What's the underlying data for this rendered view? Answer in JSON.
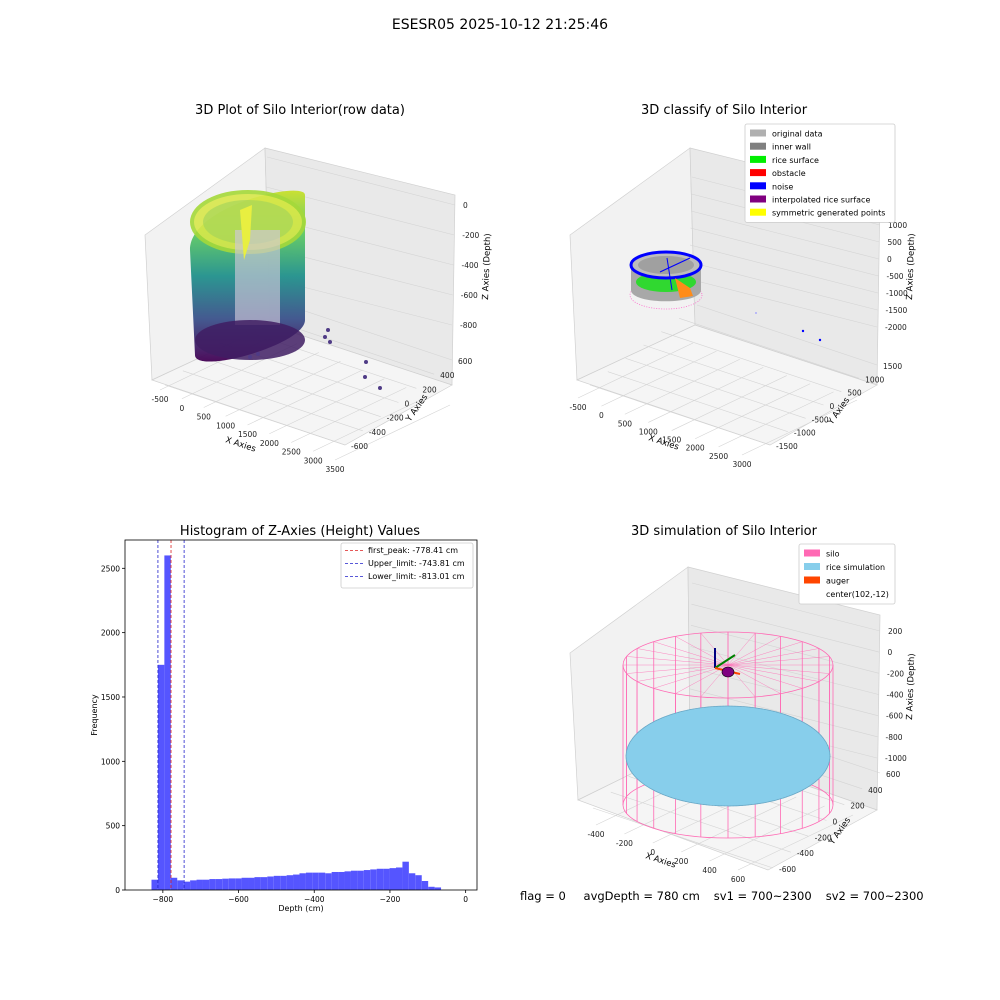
{
  "figure": {
    "title": "ESESR05 2025-10-12 21:25:46"
  },
  "footer": {
    "flag": "flag = 0",
    "avg_depth": "avgDepth = 780 cm",
    "sv1": "sv1 = 700~2300",
    "sv2": "sv2 = 700~2300"
  },
  "chart_data": [
    {
      "type": "scatter",
      "title": "3D Plot of Silo Interior(row data)",
      "xlabel": "X Axies",
      "ylabel": "Y Axies",
      "zlabel": "Z Axies (Depth)",
      "x_ticks": [
        "-500",
        "0",
        "500",
        "1000",
        "1500",
        "2000",
        "2500",
        "3000",
        "3500"
      ],
      "y_ticks": [
        "-600",
        "-400",
        "-200",
        "0",
        "200",
        "400",
        "600"
      ],
      "z_ticks": [
        "0",
        "-200",
        "-400",
        "-600",
        "-800"
      ],
      "xlim": [
        -700,
        3500
      ],
      "ylim": [
        -650,
        650
      ],
      "zlim": [
        -900,
        0
      ],
      "colormap": "viridis",
      "points": [
        {
          "x": 200,
          "y": 0,
          "z": -20,
          "desc": "silo wall point cloud, cylindrical, depth 0 to -900"
        },
        {
          "x": 1300,
          "y": -100,
          "z": -800
        },
        {
          "x": 1350,
          "y": -150,
          "z": -820
        },
        {
          "x": 2800,
          "y": -350,
          "z": -850
        },
        {
          "x": 2900,
          "y": -500,
          "z": -870
        },
        {
          "x": 3100,
          "y": -600,
          "z": -880
        }
      ]
    },
    {
      "type": "scatter",
      "title": "3D classify of Silo Interior",
      "xlabel": "X Axies",
      "ylabel": "Y Axies",
      "zlabel": "Z Axies (Depth)",
      "x_ticks": [
        "-500",
        "0",
        "500",
        "1000",
        "1500",
        "2000",
        "2500",
        "3000"
      ],
      "y_ticks": [
        "-1500",
        "-1000",
        "-500",
        "0",
        "500",
        "1000",
        "1500"
      ],
      "z_ticks": [
        "1000",
        "500",
        "0",
        "-500",
        "-1000",
        "-1500",
        "-2000"
      ],
      "xlim": [
        -600,
        3200
      ],
      "ylim": [
        -1700,
        1700
      ],
      "zlim": [
        -2200,
        1200
      ],
      "legend_position": "top-right",
      "legend": [
        {
          "label": "original data",
          "color": "#b0b0b0"
        },
        {
          "label": "inner wall",
          "color": "#808080"
        },
        {
          "label": "rice surface",
          "color": "#00ee00"
        },
        {
          "label": "obstacle",
          "color": "#ff0000"
        },
        {
          "label": "noise",
          "color": "#0000ff"
        },
        {
          "label": "interpolated rice surface",
          "color": "#800080"
        },
        {
          "label": "symmetric generated points",
          "color": "#ffff00"
        }
      ]
    },
    {
      "type": "bar",
      "title": "Histogram of Z-Axies (Height) Values",
      "xlabel": "Depth (cm)",
      "ylabel": "Frequency",
      "xlim": [
        -900,
        30
      ],
      "ylim": [
        0,
        2720
      ],
      "x_ticks": [
        -800,
        -600,
        -400,
        -200,
        0
      ],
      "y_ticks": [
        0,
        500,
        1000,
        1500,
        2000,
        2500
      ],
      "bin_start": -830,
      "bin_width": 17,
      "values": [
        80,
        1750,
        2600,
        95,
        75,
        65,
        75,
        80,
        80,
        85,
        85,
        88,
        90,
        90,
        95,
        95,
        100,
        100,
        105,
        110,
        110,
        115,
        120,
        130,
        135,
        135,
        135,
        130,
        140,
        140,
        145,
        150,
        150,
        155,
        160,
        165,
        165,
        170,
        175,
        220,
        130,
        115,
        70,
        25,
        20
      ],
      "bar_color": "#5555ff",
      "vlines": [
        {
          "label": "first_peak: -778.41 cm",
          "x": -778.41,
          "color": "#dd2222"
        },
        {
          "label": "Upper_limit: -743.81 cm",
          "x": -743.81,
          "color": "#2222cc"
        },
        {
          "label": "Lower_limit: -813.01 cm",
          "x": -813.01,
          "color": "#2222cc"
        }
      ],
      "legend_position": "top-right"
    },
    {
      "type": "scatter",
      "title": "3D simulation of Silo Interior",
      "xlabel": "X Axies",
      "ylabel": "Y Axies",
      "zlabel": "Z Axies (Depth)",
      "x_ticks": [
        "-400",
        "-200",
        "0",
        "200",
        "400",
        "600"
      ],
      "y_ticks": [
        "-600",
        "-400",
        "-200",
        "0",
        "200",
        "400",
        "600"
      ],
      "z_ticks": [
        "200",
        "0",
        "-200",
        "-400",
        "-600",
        "-800",
        "-1000"
      ],
      "xlim": [
        -500,
        700
      ],
      "ylim": [
        -700,
        700
      ],
      "zlim": [
        -1050,
        300
      ],
      "legend_position": "top-right",
      "legend": [
        {
          "label": "silo",
          "color": "#ff69b4"
        },
        {
          "label": "rice simulation",
          "color": "#87ceeb"
        },
        {
          "label": "auger",
          "color": "#ff4500"
        },
        {
          "label": "center(102,-12)",
          "color": ""
        }
      ]
    }
  ]
}
